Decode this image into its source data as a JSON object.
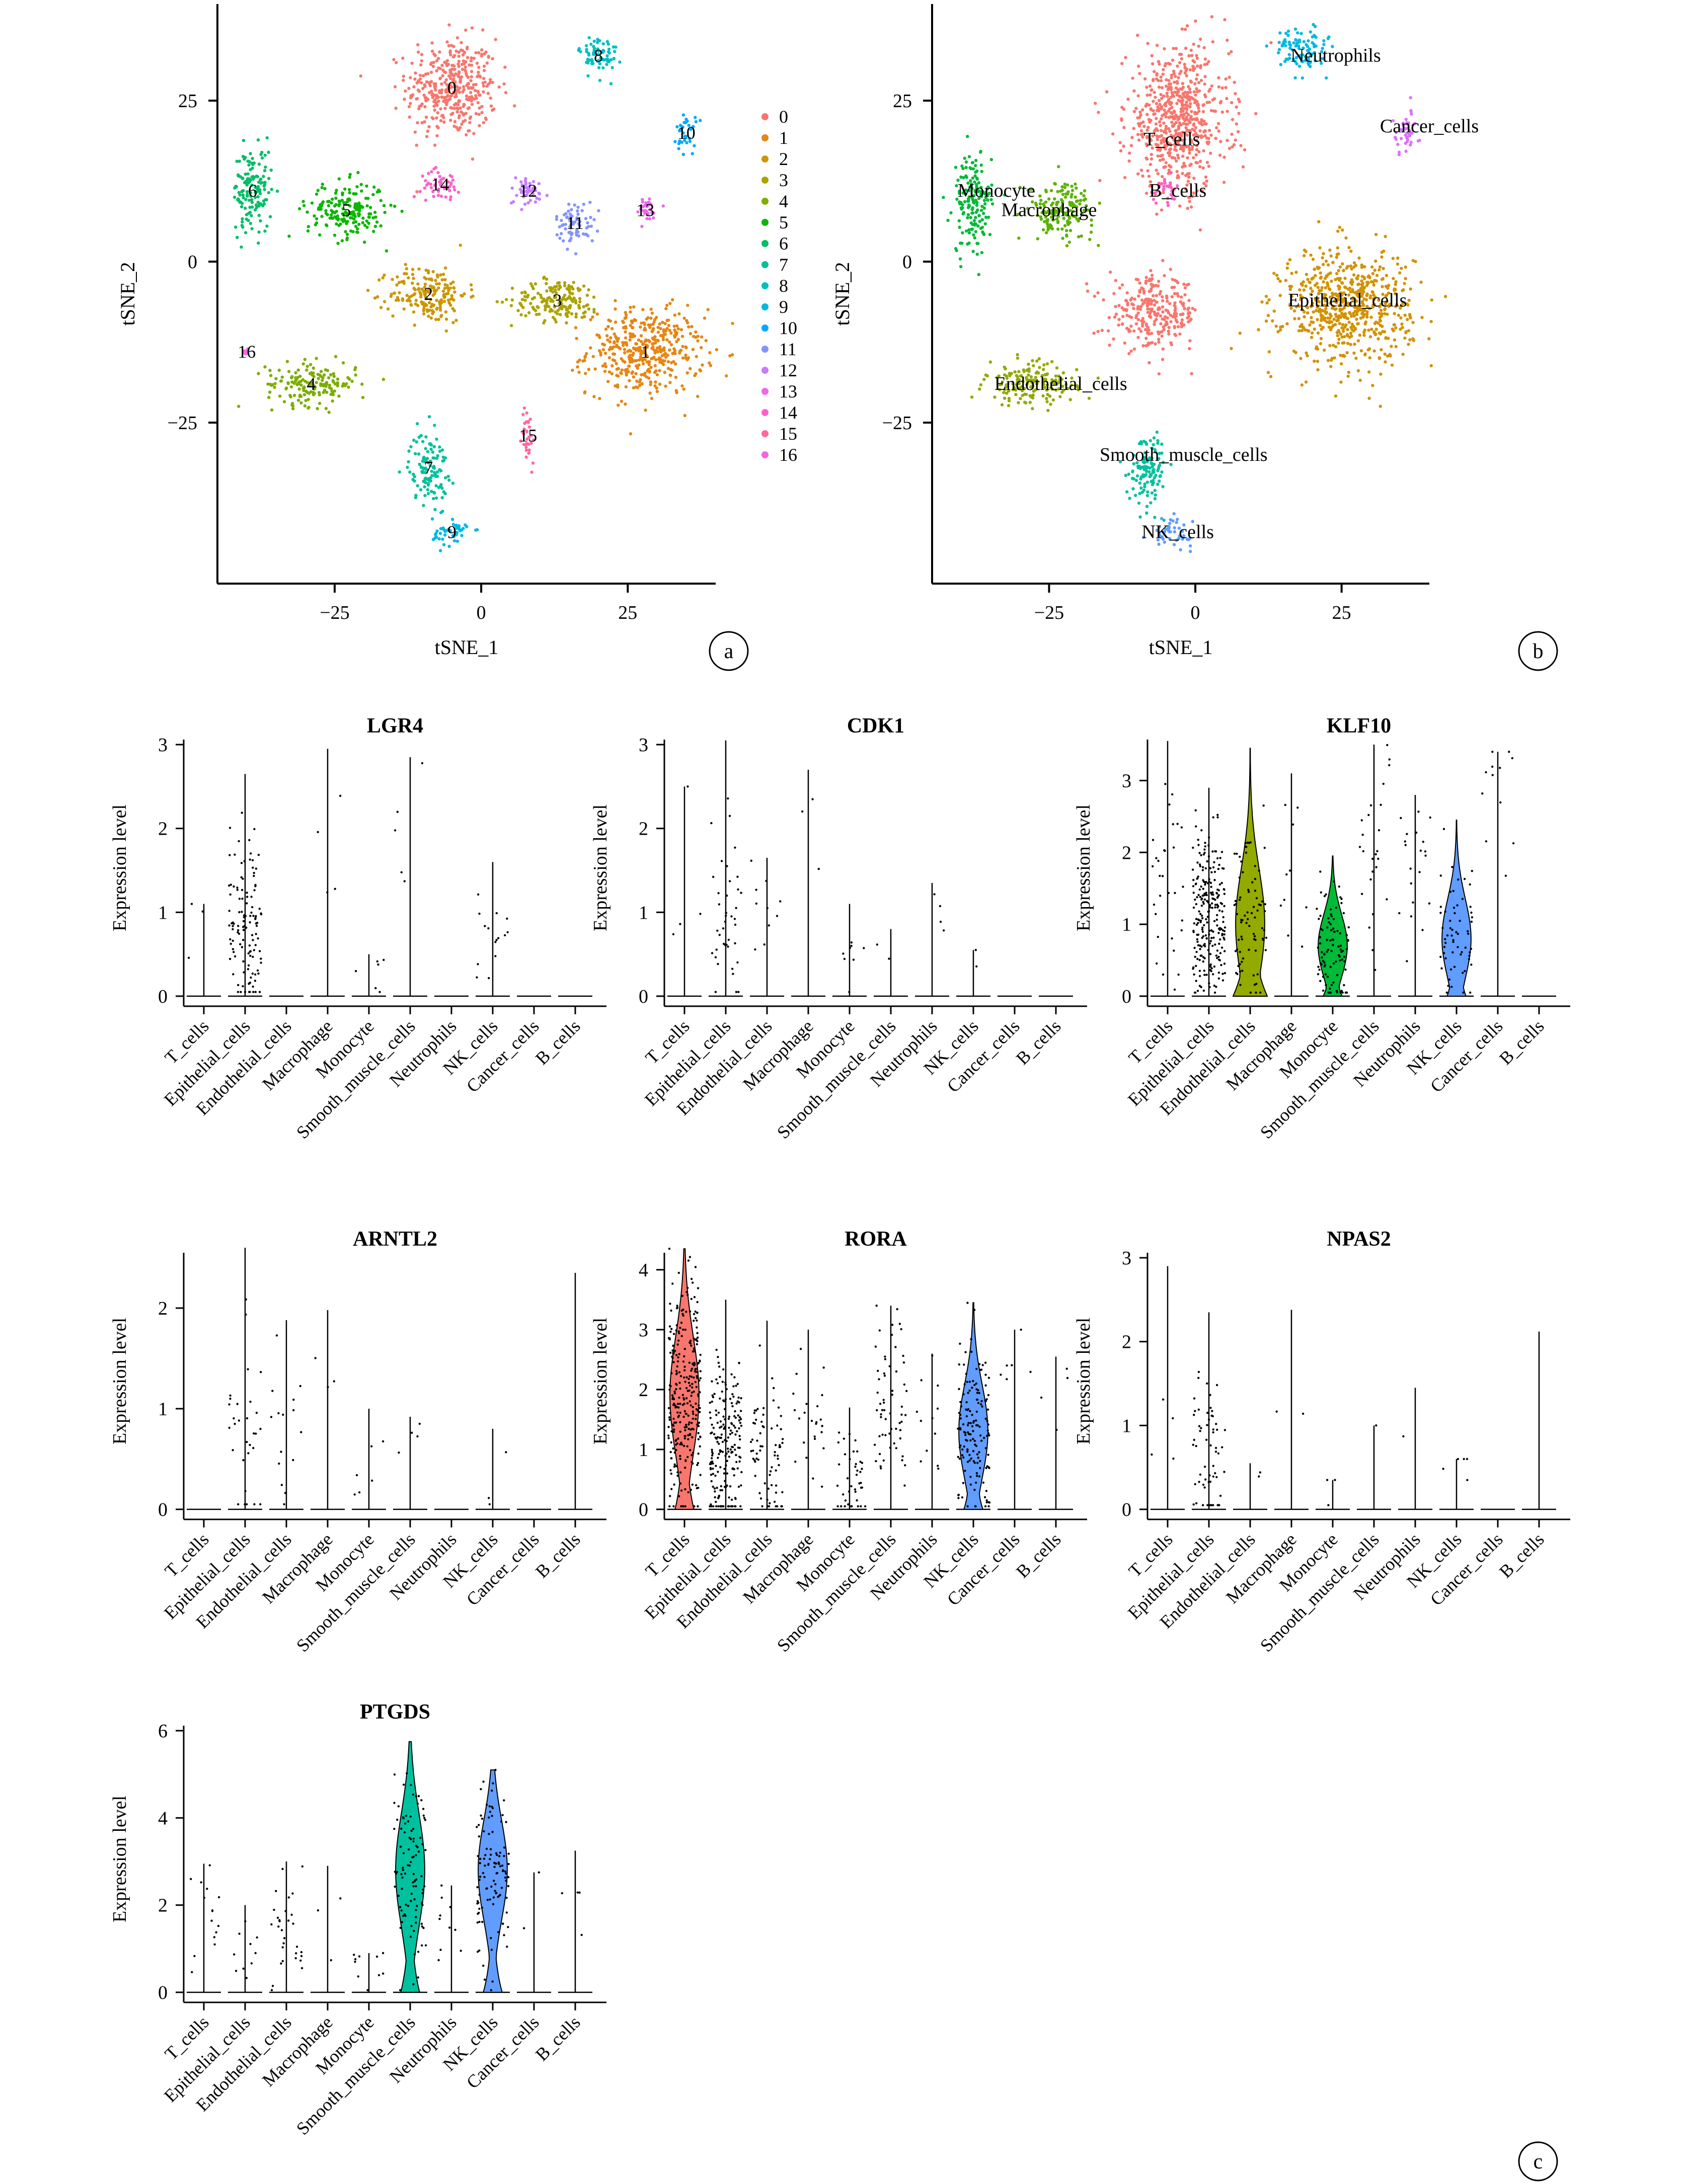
{
  "colors": {
    "clusters": [
      "#F8766D",
      "#E68613",
      "#CD9600",
      "#ABA300",
      "#7CAE00",
      "#0CB702",
      "#00BE67",
      "#00C19A",
      "#00BFC4",
      "#00B8E7",
      "#00A9FF",
      "#8494FF",
      "#C77CFF",
      "#ED68ED",
      "#FF61CC",
      "#FF68A1",
      "#F564E3"
    ],
    "celltypes": {
      "T_cells": "#F8766D",
      "Epithelial_cells": "#D39200",
      "Endothelial_cells": "#93AA00",
      "Macrophage": "#5BB300",
      "Monocyte": "#00BA38",
      "Smooth_muscle_cells": "#00C19F",
      "Neutrophils": "#00B9E3",
      "NK_cells": "#619CFF",
      "Cancer_cells": "#DB72FB",
      "B_cells": "#FF61C3"
    }
  },
  "chart_data": [
    {
      "panel": "a",
      "type": "scatter",
      "xlabel": "tSNE_1",
      "ylabel": "tSNE_2",
      "xlim": [
        -45,
        40
      ],
      "ylim": [
        -50,
        40
      ],
      "xticks": [
        -25,
        0,
        25
      ],
      "yticks": [
        -25,
        0,
        25
      ],
      "xtick_labels": [
        "−25",
        "0",
        "25"
      ],
      "ytick_labels": [
        "−25",
        "0",
        "25"
      ],
      "legend": [
        "0",
        "1",
        "2",
        "3",
        "4",
        "5",
        "6",
        "7",
        "8",
        "9",
        "10",
        "11",
        "12",
        "13",
        "14",
        "15",
        "16"
      ],
      "legend_position": "right",
      "clusters": [
        {
          "label": "0",
          "x": -5,
          "y": 27,
          "sx": 7,
          "sy": 7
        },
        {
          "label": "1",
          "x": 28,
          "y": -14,
          "sx": 9,
          "sy": 6
        },
        {
          "label": "2",
          "x": -9,
          "y": -5,
          "sx": 6,
          "sy": 4
        },
        {
          "label": "3",
          "x": 13,
          "y": -6,
          "sx": 7,
          "sy": 3
        },
        {
          "label": "4",
          "x": -29,
          "y": -19,
          "sx": 7,
          "sy": 3
        },
        {
          "label": "5",
          "x": -23,
          "y": 8,
          "sx": 6,
          "sy": 4
        },
        {
          "label": "6",
          "x": -39,
          "y": 11,
          "sx": 3,
          "sy": 6
        },
        {
          "label": "7",
          "x": -9,
          "y": -32,
          "sx": 3,
          "sy": 5
        },
        {
          "label": "8",
          "x": 20,
          "y": 32,
          "sx": 3,
          "sy": 3
        },
        {
          "label": "9",
          "x": -5,
          "y": -42,
          "sx": 3,
          "sy": 2
        },
        {
          "label": "10",
          "x": 35,
          "y": 20,
          "sx": 1.5,
          "sy": 3
        },
        {
          "label": "11",
          "x": 16,
          "y": 6,
          "sx": 3,
          "sy": 3
        },
        {
          "label": "12",
          "x": 8,
          "y": 11,
          "sx": 3,
          "sy": 2
        },
        {
          "label": "13",
          "x": 28,
          "y": 8,
          "sx": 2,
          "sy": 2
        },
        {
          "label": "14",
          "x": -7,
          "y": 12,
          "sx": 3,
          "sy": 2
        },
        {
          "label": "15",
          "x": 8,
          "y": -27,
          "sx": 1,
          "sy": 4
        },
        {
          "label": "16",
          "x": -40,
          "y": -14,
          "sx": 0.5,
          "sy": 0.5
        }
      ]
    },
    {
      "panel": "b",
      "type": "scatter",
      "xlabel": "tSNE_1",
      "ylabel": "tSNE_2",
      "xlim": [
        -45,
        40
      ],
      "ylim": [
        -50,
        40
      ],
      "xticks": [
        -25,
        0,
        25
      ],
      "yticks": [
        -25,
        0,
        25
      ],
      "xtick_labels": [
        "−25",
        "0",
        "25"
      ],
      "ytick_labels": [
        "−25",
        "0",
        "25"
      ],
      "clusters": [
        {
          "label": "T_cells",
          "x": -3,
          "y": 22,
          "sx": 8,
          "sy": 10
        },
        {
          "label": "T_cells",
          "x": -7,
          "y": -8,
          "sx": 7,
          "sy": 5
        },
        {
          "label": "Epithelial_cells",
          "x": 26,
          "y": -7,
          "sx": 10,
          "sy": 8
        },
        {
          "label": "Endothelial_cells",
          "x": -28,
          "y": -19,
          "sx": 7,
          "sy": 3
        },
        {
          "label": "Monocyte",
          "x": -38,
          "y": 9,
          "sx": 3,
          "sy": 7
        },
        {
          "label": "Macrophage",
          "x": -23,
          "y": 8,
          "sx": 5,
          "sy": 4
        },
        {
          "label": "B_cells",
          "x": -5,
          "y": 11,
          "sx": 2,
          "sy": 2
        },
        {
          "label": "Smooth_muscle_cells",
          "x": -8,
          "y": -32,
          "sx": 3,
          "sy": 5
        },
        {
          "label": "NK_cells",
          "x": -4,
          "y": -42,
          "sx": 3,
          "sy": 2
        },
        {
          "label": "Neutrophils",
          "x": 18,
          "y": 33,
          "sx": 4,
          "sy": 3
        },
        {
          "label": "Cancer_cells",
          "x": 36,
          "y": 20,
          "sx": 2,
          "sy": 3
        }
      ],
      "annotations": [
        {
          "text": "Neutrophils",
          "x": 24,
          "y": 32
        },
        {
          "text": "Cancer_cells",
          "x": 40,
          "y": 21
        },
        {
          "text": "T_cells",
          "x": -4,
          "y": 19
        },
        {
          "text": "Monocyte",
          "x": -34,
          "y": 11
        },
        {
          "text": "Macrophage",
          "x": -25,
          "y": 8
        },
        {
          "text": "B_cells",
          "x": -3,
          "y": 11
        },
        {
          "text": "Epithelial_cells",
          "x": 26,
          "y": -6
        },
        {
          "text": "Endothelial_cells",
          "x": -23,
          "y": -19
        },
        {
          "text": "Smooth_muscle_cells",
          "x": -2,
          "y": -30
        },
        {
          "text": "NK_cells",
          "x": -3,
          "y": -42
        }
      ]
    },
    {
      "panel": "c",
      "type": "violin",
      "ylabel": "Expression level",
      "categories": [
        "T_cells",
        "Epithelial_cells",
        "Endothelial_cells",
        "Macrophage",
        "Monocyte",
        "Smooth_muscle_cells",
        "Neutrophils",
        "NK_cells",
        "Cancer_cells",
        "B_cells"
      ],
      "genes": [
        {
          "title": "LGR4",
          "ymax": 3,
          "yticks": [
            0,
            1,
            2,
            3
          ],
          "max": [
            1.1,
            2.65,
            0,
            2.95,
            0.5,
            2.85,
            0,
            1.6,
            0,
            0
          ],
          "violin": [
            0,
            0,
            0,
            0,
            0,
            0,
            0,
            0,
            0,
            0
          ],
          "ndots": [
            3,
            120,
            0,
            4,
            6,
            5,
            0,
            15,
            0,
            0
          ],
          "dotmean": [
            1,
            0.9,
            0,
            1.5,
            0.35,
            1.5,
            0,
            0.6,
            0,
            0
          ]
        },
        {
          "title": "CDK1",
          "ymax": 3,
          "yticks": [
            0,
            1,
            2,
            3
          ],
          "max": [
            2.5,
            3.05,
            1.65,
            2.7,
            1.1,
            0.8,
            1.35,
            0.55,
            0,
            0
          ],
          "violin": [
            0,
            0,
            0,
            0,
            0,
            0,
            0,
            0,
            0,
            0
          ],
          "ndots": [
            4,
            40,
            10,
            3,
            8,
            2,
            4,
            2,
            0,
            0
          ],
          "dotmean": [
            1.6,
            0.8,
            1.0,
            1.5,
            0.5,
            0.7,
            1.0,
            0.4,
            0,
            0
          ]
        },
        {
          "title": "KLF10",
          "ymax": 3.5,
          "yticks": [
            0,
            1,
            2,
            3
          ],
          "max": [
            3.55,
            2.9,
            3.45,
            3.1,
            1.95,
            3.5,
            2.8,
            2.45,
            3.4,
            0
          ],
          "violin": [
            0,
            0,
            1,
            0,
            1,
            0,
            0,
            1,
            0,
            0
          ],
          "ndots": [
            30,
            250,
            80,
            10,
            100,
            25,
            20,
            60,
            12,
            0
          ],
          "dotmean": [
            1.5,
            1.1,
            1.0,
            1.8,
            0.7,
            1.8,
            1.6,
            0.8,
            2.6,
            0
          ]
        },
        {
          "title": "ARNTL2",
          "ymax": 2.5,
          "yticks": [
            0,
            1,
            2
          ],
          "max": [
            0,
            2.6,
            1.88,
            1.98,
            1.0,
            0.92,
            0,
            0.8,
            0,
            2.35
          ],
          "violin": [
            0,
            0,
            0,
            0,
            0,
            0,
            0,
            0,
            0,
            0
          ],
          "ndots": [
            0,
            30,
            15,
            3,
            6,
            4,
            0,
            3,
            0,
            0
          ],
          "dotmean": [
            0,
            0.7,
            0.8,
            1.4,
            0.5,
            0.6,
            0,
            0.4,
            0,
            0
          ]
        },
        {
          "title": "RORA",
          "ymax": 4.2,
          "yticks": [
            0,
            1,
            2,
            3,
            4
          ],
          "max": [
            4.35,
            3.5,
            3.15,
            3.0,
            1.7,
            3.4,
            2.6,
            3.45,
            3.0,
            2.55
          ],
          "violin": [
            1,
            0,
            0,
            0,
            0,
            0,
            0,
            1,
            0,
            0
          ],
          "ndots": [
            300,
            200,
            70,
            25,
            40,
            60,
            12,
            150,
            6,
            4
          ],
          "dotmean": [
            1.9,
            1.0,
            1.0,
            1.6,
            0.5,
            1.7,
            1.4,
            1.3,
            2.6,
            2.0
          ]
        },
        {
          "title": "NPAS2",
          "ymax": 3,
          "yticks": [
            0,
            1,
            2,
            3
          ],
          "max": [
            2.9,
            2.35,
            0.55,
            2.38,
            0.35,
            1.0,
            1.45,
            0.6,
            0,
            2.12
          ],
          "violin": [
            0,
            0,
            0,
            0,
            0,
            0,
            0,
            0,
            0,
            0
          ],
          "ndots": [
            4,
            60,
            2,
            2,
            3,
            1,
            1,
            5,
            0,
            0
          ],
          "dotmean": [
            1.6,
            0.8,
            0.4,
            1.2,
            0.3,
            0.9,
            1.2,
            0.4,
            0,
            0
          ]
        },
        {
          "title": "PTGDS",
          "ymax": 6,
          "yticks": [
            0,
            2,
            4,
            6
          ],
          "max": [
            2.95,
            2.0,
            3.0,
            2.9,
            0.9,
            5.75,
            2.45,
            5.1,
            2.75,
            3.25
          ],
          "violin": [
            0,
            0,
            0,
            0,
            0,
            1,
            0,
            1,
            0,
            0
          ],
          "ndots": [
            15,
            10,
            30,
            3,
            10,
            100,
            10,
            110,
            2,
            4
          ],
          "dotmean": [
            1.8,
            1.0,
            1.6,
            2.5,
            0.5,
            2.8,
            1.5,
            2.8,
            2.7,
            2.2
          ]
        }
      ]
    }
  ],
  "panel_labels": [
    "a",
    "b",
    "c"
  ]
}
